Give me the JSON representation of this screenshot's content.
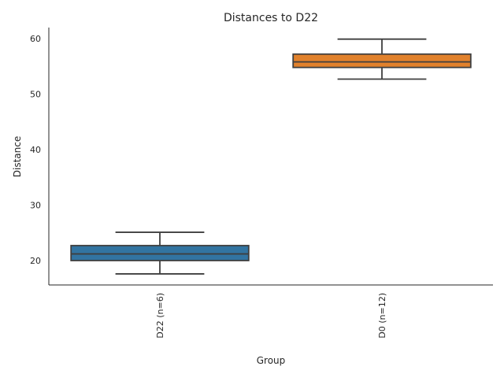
{
  "chart_data": {
    "type": "box",
    "title": "Distances to D22",
    "xlabel": "Group",
    "ylabel": "Distance",
    "ylim": [
      15.5,
      62
    ],
    "yticks": [
      20,
      30,
      40,
      50,
      60
    ],
    "grid": false,
    "categories": [
      "D22 (n=6)",
      "D0 (n=12)"
    ],
    "boxes": [
      {
        "name": "D22 (n=6)",
        "whisker_low": 17.6,
        "q1": 20.0,
        "median": 21.2,
        "q3": 22.7,
        "whisker_high": 25.1,
        "color": "#3274a1"
      },
      {
        "name": "D0 (n=12)",
        "whisker_low": 52.7,
        "q1": 54.8,
        "median": 55.8,
        "q3": 57.2,
        "whisker_high": 59.9,
        "color": "#e1812c"
      }
    ]
  }
}
